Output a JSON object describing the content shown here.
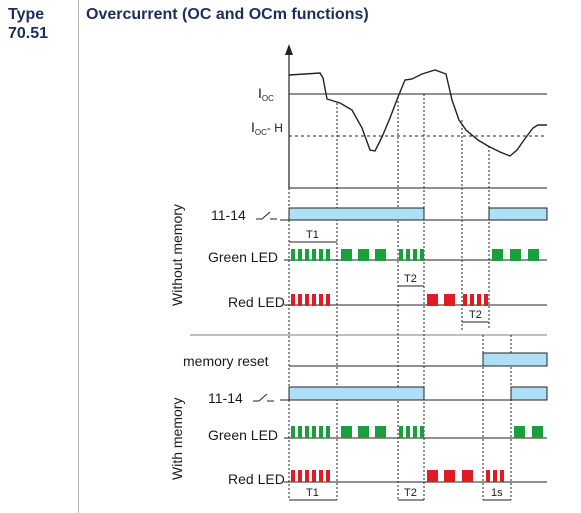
{
  "header": {
    "type_label": "Type",
    "type_number": "70.51",
    "title": "Overcurrent (OC and OCm functions)"
  },
  "graph": {
    "ioc_main": "I",
    "ioc_sub": "OC",
    "iocH_main": "I",
    "iocH_sub": "OC",
    "iocH_suffix": "- H"
  },
  "sections": {
    "without_memory": "Without memory",
    "with_memory": "With memory"
  },
  "rows": {
    "contact_1": "11-14",
    "green_1": "Green LED",
    "red_1": "Red LED",
    "memory_reset": "memory reset",
    "contact_2": "11-14",
    "green_2": "Green LED",
    "red_2": "Red LED"
  },
  "timings": {
    "t1_top": "T1",
    "t2_top_a": "T2",
    "t2_top_b": "T2",
    "t1_bottom": "T1",
    "t2_bottom": "T2",
    "one_s": "1s"
  },
  "colors": {
    "header": "#1f2d5a",
    "contact_fill": "#aee0f5",
    "green": "#1a9e3e",
    "red": "#e01b24"
  }
}
